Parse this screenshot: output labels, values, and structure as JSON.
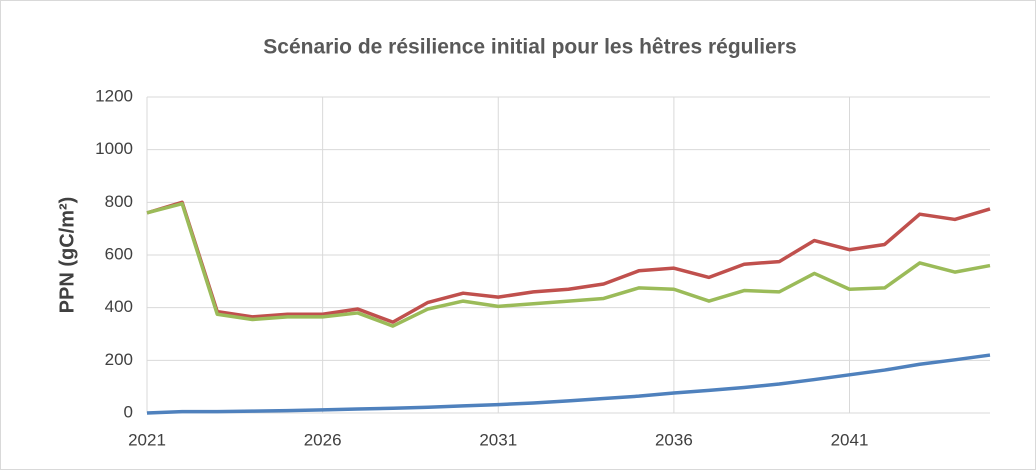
{
  "chart_data": {
    "type": "line",
    "title": "Scénario de résilience initial pour les hêtres réguliers",
    "ylabel": "PPN  (gC/m²)",
    "x": [
      2021,
      2022,
      2023,
      2024,
      2025,
      2026,
      2027,
      2028,
      2029,
      2030,
      2031,
      2032,
      2033,
      2034,
      2035,
      2036,
      2037,
      2038,
      2039,
      2040,
      2041,
      2042,
      2043,
      2044,
      2045
    ],
    "xlim": [
      2021,
      2045
    ],
    "xticks": [
      2021,
      2026,
      2031,
      2036,
      2041
    ],
    "ylim": [
      0,
      1200
    ],
    "yticks": [
      0,
      200,
      400,
      600,
      800,
      1000,
      1200
    ],
    "grid": true,
    "series": [
      {
        "color": "#c0504d",
        "values": [
          760,
          800,
          385,
          365,
          375,
          375,
          395,
          345,
          420,
          455,
          440,
          460,
          470,
          490,
          540,
          550,
          515,
          565,
          575,
          655,
          620,
          640,
          755,
          735,
          775
        ]
      },
      {
        "color": "#9bbb59",
        "values": [
          760,
          795,
          375,
          355,
          365,
          365,
          380,
          330,
          395,
          425,
          405,
          415,
          425,
          435,
          475,
          470,
          425,
          465,
          460,
          530,
          470,
          475,
          570,
          535,
          560
        ]
      },
      {
        "color": "#4f81bd",
        "values": [
          0,
          5,
          5,
          7,
          9,
          12,
          15,
          18,
          22,
          27,
          32,
          38,
          46,
          55,
          64,
          76,
          86,
          97,
          110,
          127,
          145,
          163,
          185,
          202,
          220
        ]
      }
    ]
  }
}
